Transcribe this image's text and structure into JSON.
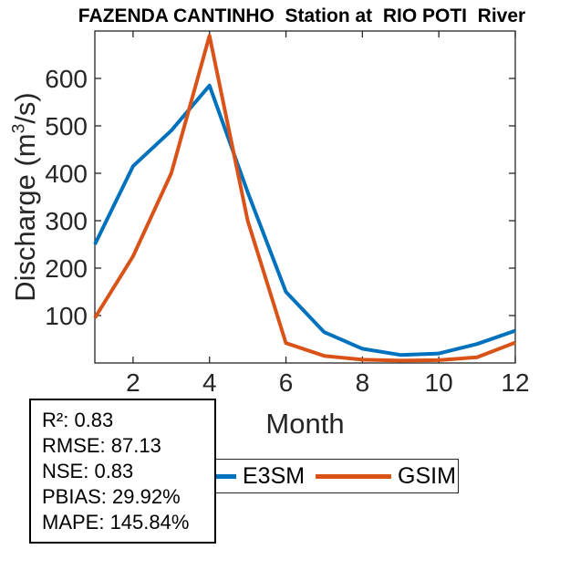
{
  "title": "FAZENDA CANTINHO  Station at  RIO POTI  River",
  "chart_data": {
    "type": "line",
    "x": [
      1,
      2,
      3,
      4,
      5,
      6,
      7,
      8,
      9,
      10,
      11,
      12
    ],
    "series": [
      {
        "name": "E3SM",
        "color": "#0072BD",
        "values": [
          250,
          415,
          490,
          585,
          360,
          150,
          65,
          30,
          17,
          20,
          40,
          68
        ]
      },
      {
        "name": "GSIM",
        "color": "#D95319",
        "values": [
          95,
          225,
          400,
          690,
          300,
          42,
          15,
          7,
          5,
          6,
          12,
          43
        ]
      }
    ],
    "title": "FAZENDA CANTINHO  Station at  RIO POTI  River",
    "xlabel": "Month",
    "ylabel": "Discharge (m³/s)",
    "ylabel_parts": {
      "pre": "Discharge (m",
      "sup": "3",
      "post": "/s)"
    },
    "xlim": [
      1,
      12
    ],
    "ylim": [
      0,
      700
    ],
    "xticks": [
      2,
      4,
      6,
      8,
      10,
      12
    ],
    "yticks": [
      100,
      200,
      300,
      400,
      500,
      600
    ],
    "grid": false,
    "legend_position": "below-axes",
    "axis_color": "#262626",
    "line_width": 4
  },
  "legend": {
    "entries": [
      {
        "label": "E3SM",
        "color": "#0072BD"
      },
      {
        "label": "GSIM",
        "color": "#D95319"
      }
    ]
  },
  "stats": {
    "lines": [
      "R²: 0.83",
      "RMSE: 87.13",
      "NSE: 0.83",
      "PBIAS: 29.92%",
      "MAPE: 145.84%"
    ]
  }
}
